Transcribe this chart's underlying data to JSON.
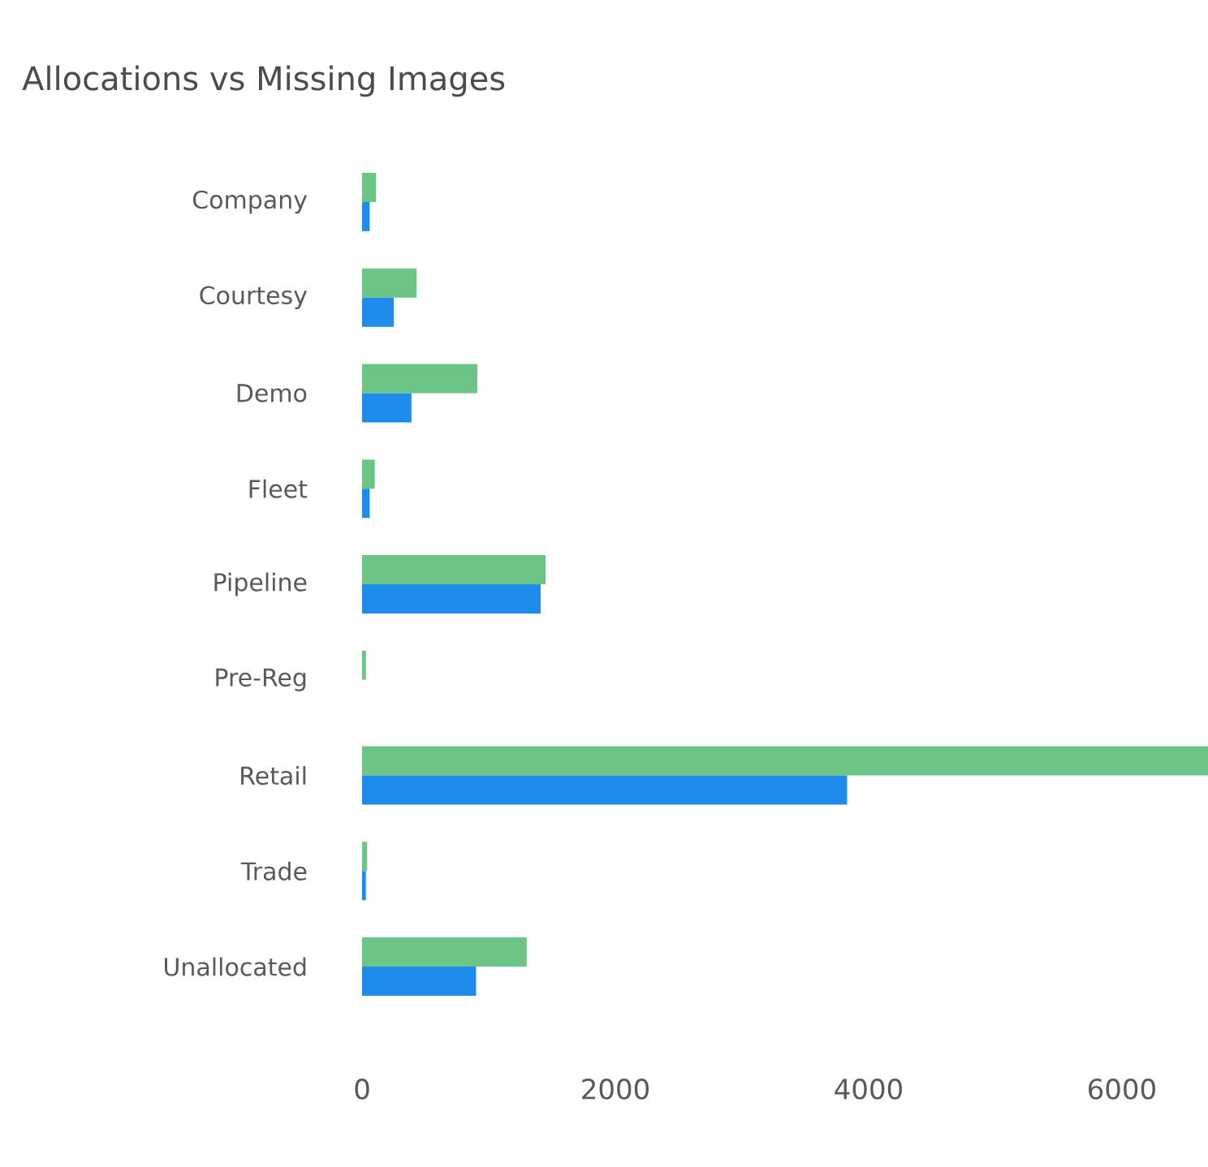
{
  "chart_data": {
    "type": "bar",
    "orientation": "horizontal",
    "title": "Allocations vs Missing Images",
    "categories": [
      "Company",
      "Courtesy",
      "Demo",
      "Fleet",
      "Pipeline",
      "Pre-Reg",
      "Retail",
      "Trade",
      "Unallocated"
    ],
    "series": [
      {
        "color": "#6cc486",
        "values": [
          110,
          430,
          910,
          100,
          1450,
          30,
          6680,
          40,
          1300
        ]
      },
      {
        "color": "#1f8ceb",
        "values": [
          60,
          250,
          390,
          60,
          1410,
          0,
          3830,
          30,
          900
        ]
      }
    ],
    "xlim": [
      0,
      6680
    ],
    "xticks": [
      0,
      2000,
      4000,
      6000
    ]
  }
}
